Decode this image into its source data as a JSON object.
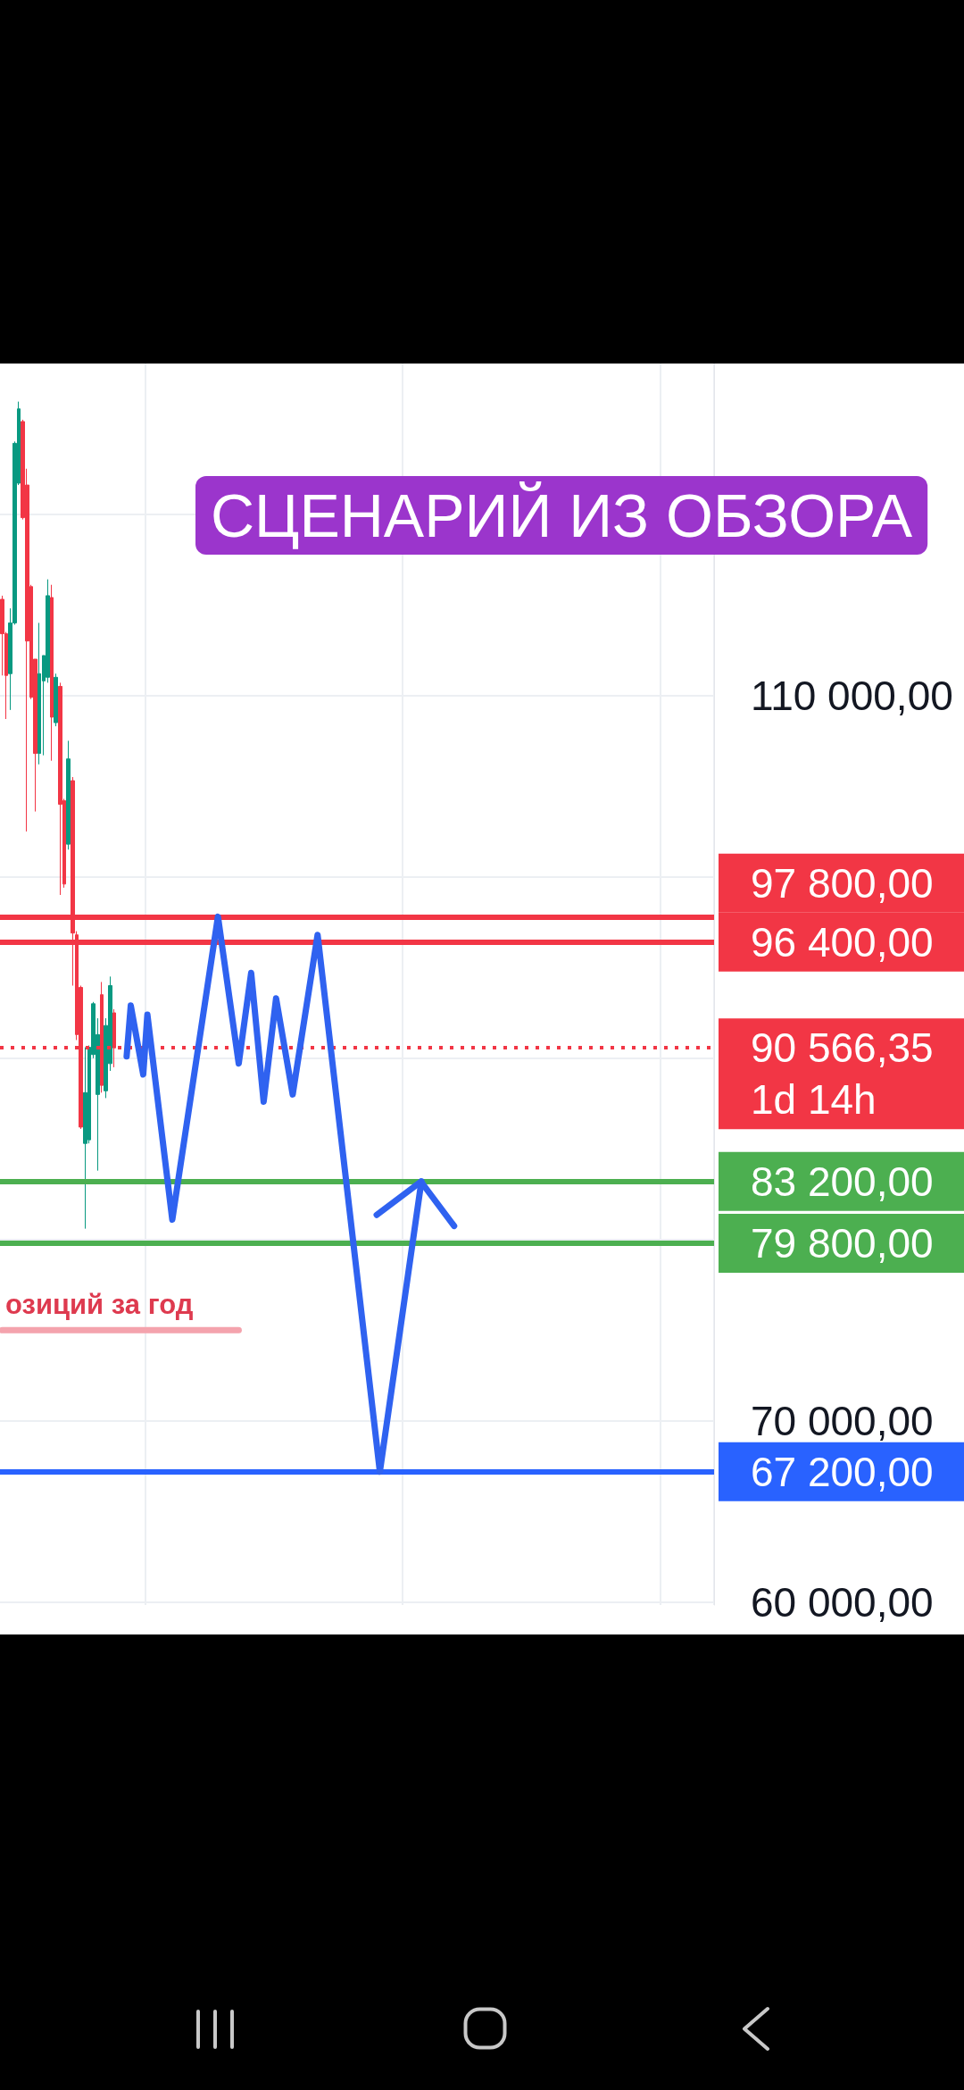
{
  "chart_data": {
    "type": "candlestick",
    "title": "СЦЕНАРИЙ ИЗ ОБЗОРА",
    "categories": [
      null,
      null,
      null,
      null,
      null,
      null,
      null,
      null,
      null,
      null,
      null,
      null,
      null,
      null,
      null,
      null,
      null,
      null,
      null,
      null,
      null,
      null,
      null,
      null,
      null,
      null,
      null,
      null,
      null,
      null,
      null,
      null,
      null,
      null,
      null,
      null,
      null,
      null,
      null,
      null,
      null,
      null,
      null,
      null,
      null,
      null,
      null,
      null,
      null,
      null,
      null,
      null,
      null,
      null,
      null,
      null,
      null,
      null,
      null,
      null,
      null,
      null,
      null,
      null,
      null,
      null,
      null,
      null,
      null,
      null,
      null,
      null,
      null,
      null,
      null,
      null,
      null,
      null,
      null,
      null,
      null,
      null,
      null,
      null,
      null,
      null,
      null,
      null,
      null,
      null,
      null,
      null,
      null,
      null,
      null,
      null,
      null,
      null,
      null,
      null,
      null,
      null,
      null,
      null,
      null,
      null,
      null,
      null,
      null,
      null,
      null,
      null,
      null,
      null,
      null,
      null,
      null,
      null,
      null,
      null,
      null,
      null,
      null,
      null,
      null,
      null,
      null,
      null,
      null,
      null,
      null,
      null,
      null,
      null,
      null,
      null,
      null,
      null,
      null,
      null,
      null,
      null,
      null,
      null,
      null,
      null,
      null,
      null,
      null,
      null,
      null,
      null,
      null,
      null,
      null,
      null,
      null,
      null,
      null,
      null,
      null,
      null,
      null,
      null,
      null,
      null,
      null,
      null,
      null,
      null,
      null,
      null
    ],
    "series": [
      {
        "ohlc": [
          [
            115300,
            115500,
            111100,
            113400
          ],
          [
            113400,
            113500,
            108700,
            111100
          ],
          [
            111200,
            114800,
            109200,
            114000
          ],
          [
            114000,
            124000,
            113900,
            123900
          ],
          [
            121700,
            126200,
            121600,
            125800
          ],
          [
            125100,
            125200,
            119700,
            119800
          ],
          [
            121600,
            122500,
            102500,
            113000
          ],
          [
            116000,
            116100,
            109800,
            109900
          ],
          [
            112000,
            112000,
            103600,
            106800
          ],
          [
            106800,
            114000,
            106200,
            111200
          ],
          [
            110800,
            112200,
            106700,
            112200
          ],
          [
            111000,
            116400,
            110700,
            115500
          ],
          [
            115400,
            116100,
            106400,
            108800
          ],
          [
            108500,
            111200,
            108300,
            111000
          ],
          [
            110500,
            110700,
            99000,
            104000
          ],
          [
            104200,
            104300,
            99400,
            99600
          ],
          [
            101800,
            107500,
            101500,
            106500
          ],
          [
            105300,
            105500,
            94000,
            96900
          ],
          [
            96800,
            97000,
            91000,
            91300
          ],
          [
            93900,
            94000,
            86100,
            86200
          ],
          [
            85300,
            90600,
            80600,
            88100
          ],
          [
            85500,
            90700,
            85300,
            90600
          ],
          [
            90200,
            93100,
            90000,
            93000
          ],
          [
            88000,
            92200,
            83800,
            91300
          ],
          [
            93500,
            94200,
            88100,
            88500
          ],
          [
            88200,
            92200,
            87800,
            91800
          ],
          [
            89700,
            94500,
            89300,
            94000
          ],
          [
            92500,
            92700,
            89500,
            90566.35
          ],
          null,
          null,
          null,
          null,
          null,
          null,
          null,
          null,
          null,
          null,
          null,
          null,
          null,
          null,
          null,
          null,
          null,
          null,
          null,
          null,
          null,
          null,
          null,
          null,
          null,
          null,
          null,
          null,
          null,
          null,
          null,
          null,
          null,
          null,
          null,
          null,
          null,
          null,
          null,
          null,
          null,
          null,
          null,
          null,
          null,
          null,
          null,
          null,
          null,
          null,
          null,
          null,
          null,
          null,
          null,
          null,
          null,
          null,
          null,
          null,
          null,
          null,
          null,
          null,
          null,
          null,
          null,
          null,
          null,
          null,
          null,
          null,
          null,
          null,
          null,
          null,
          null,
          null,
          null,
          null,
          null,
          null,
          null,
          null,
          null,
          null,
          null,
          null,
          null,
          null,
          null,
          null,
          null,
          null,
          null,
          null,
          null,
          null,
          null,
          null,
          null,
          null,
          null,
          null,
          null,
          null,
          null,
          null,
          null,
          null,
          null,
          null,
          null,
          null,
          null,
          null,
          null,
          null,
          null,
          null,
          null,
          null,
          null,
          null,
          null,
          null,
          null,
          null,
          null,
          null,
          null,
          null,
          null,
          null,
          null,
          null,
          null,
          null,
          null,
          null,
          null,
          null,
          null,
          null
        ],
        "colors": [
          "#f23645",
          "#f23645",
          "#089981",
          "#089981",
          "#089981",
          "#f23645",
          "#f23645",
          "#f23645",
          "#f23645",
          "#089981",
          "#089981",
          "#089981",
          "#f23645",
          "#089981",
          "#f23645",
          "#f23645",
          "#089981",
          "#f23645",
          "#f23645",
          "#f23645",
          "#089981",
          "#089981",
          "#089981",
          "#089981",
          "#f23645",
          "#089981",
          "#089981",
          "#f23645",
          null,
          null,
          null,
          null,
          null,
          null,
          null,
          null,
          null,
          null,
          null,
          null,
          null,
          null,
          null,
          null,
          null,
          null,
          null,
          null,
          null,
          null,
          null,
          null,
          null,
          null,
          null,
          null,
          null,
          null,
          null,
          null,
          null,
          null,
          null,
          null,
          null,
          null,
          null,
          null,
          null,
          null,
          null,
          null,
          null,
          null,
          null,
          null,
          null,
          null,
          null,
          null,
          null,
          null,
          null,
          null,
          null,
          null,
          null,
          null,
          null,
          null,
          null,
          null,
          null,
          null,
          null,
          null,
          null,
          null,
          null,
          null,
          null,
          null,
          null,
          null,
          null,
          null,
          null,
          null,
          null,
          null,
          null,
          null,
          null,
          null,
          null,
          null,
          null,
          null,
          null,
          null,
          null,
          null,
          null,
          null,
          null,
          null,
          null,
          null,
          null,
          null,
          null,
          null,
          null,
          null,
          null,
          null,
          null,
          null,
          null,
          null,
          null,
          null,
          null,
          null,
          null,
          null,
          null,
          null,
          null,
          null,
          null,
          null,
          null,
          null,
          null,
          null,
          null,
          null,
          null,
          null,
          null,
          null,
          null,
          null,
          null,
          null,
          null,
          null,
          null,
          null,
          null,
          null
        ]
      },
      {
        "type": "line",
        "color": "#2f62f0",
        "values": [
          null,
          null,
          null,
          null,
          null,
          null,
          null,
          null,
          null,
          null,
          null,
          null,
          null,
          null,
          null,
          null,
          null,
          null,
          null,
          null,
          null,
          null,
          null,
          null,
          null,
          null,
          null,
          null,
          null,
          null,
          90100,
          92900,
          null,
          null,
          89100,
          92400,
          null,
          null,
          null,
          null,
          null,
          81100,
          null,
          null,
          null,
          null,
          null,
          null,
          null,
          null,
          null,
          null,
          97800,
          null,
          null,
          null,
          null,
          89700,
          null,
          null,
          94700,
          null,
          null,
          87600,
          null,
          null,
          93300,
          null,
          null,
          null,
          88000,
          null,
          null,
          null,
          null,
          null,
          96800,
          null,
          null,
          null,
          null,
          null,
          null,
          null,
          null,
          null,
          null,
          null,
          null,
          null,
          null,
          67200,
          null,
          null,
          null,
          null,
          null,
          null,
          null,
          null,
          null,
          83200,
          null,
          null,
          null,
          null,
          null,
          null,
          null,
          null,
          null,
          null,
          null,
          null,
          null,
          null,
          null,
          null,
          null,
          null,
          null,
          null,
          null,
          null,
          null,
          null,
          null,
          null,
          null,
          null,
          null,
          null,
          null,
          null,
          null,
          null,
          null,
          null,
          null,
          null,
          null,
          null,
          null,
          null,
          null,
          null,
          null,
          null,
          null,
          null,
          null,
          null,
          null,
          null,
          null,
          null,
          null,
          null,
          null,
          null,
          null,
          null,
          null,
          null,
          null,
          null,
          null,
          null,
          null,
          null,
          null,
          null
        ]
      },
      {
        "type": "line",
        "color": "#f4a3ad",
        "values": [
          75000,
          null,
          null,
          null,
          null,
          null,
          null,
          null,
          null,
          null,
          null,
          null,
          null,
          null,
          null,
          null,
          null,
          null,
          null,
          null,
          null,
          null,
          null,
          null,
          null,
          null,
          null,
          null,
          null,
          null,
          null,
          null,
          null,
          null,
          null,
          null,
          null,
          null,
          null,
          null,
          null,
          null,
          null,
          null,
          null,
          null,
          null,
          null,
          null,
          null,
          null,
          null,
          null,
          null,
          null,
          null,
          null,
          75000,
          null,
          null,
          null,
          null,
          null,
          null,
          null,
          null,
          null,
          null,
          null,
          null,
          null,
          null,
          null,
          null,
          null,
          null,
          null,
          null,
          null,
          null,
          null,
          null,
          null,
          null,
          null,
          null,
          null,
          null,
          null,
          null,
          null,
          null,
          null,
          null,
          null,
          null,
          null,
          null,
          null,
          null,
          null,
          null,
          null,
          null,
          null,
          null,
          null,
          null,
          null,
          null,
          null,
          null,
          null,
          null,
          null,
          null,
          null,
          null,
          null,
          null,
          null,
          null,
          null,
          null,
          null,
          null,
          null,
          null,
          null,
          null,
          null,
          null,
          null,
          null,
          null,
          null,
          null,
          null,
          null,
          null,
          null,
          null,
          null,
          null,
          null,
          null,
          null,
          null,
          null,
          null,
          null,
          null,
          null,
          null,
          null,
          null,
          null,
          null,
          null,
          null,
          null,
          null,
          null,
          null,
          null,
          null,
          null,
          null,
          null,
          null,
          null,
          null
        ]
      }
    ],
    "ylim": [
      59850,
      128300
    ],
    "yticks": [
      {
        "value": 60000,
        "label": "60 000,00"
      },
      {
        "value": 70000,
        "label": "70 000,00"
      },
      {
        "value": 80000,
        "label": null
      },
      {
        "value": 90000,
        "label": null
      },
      {
        "value": 100000,
        "label": null
      },
      {
        "value": 110000,
        "label": "110 000,00"
      },
      {
        "value": 120000,
        "label": null
      }
    ],
    "grid": true,
    "tick_labels": "y",
    "marker": "none",
    "ref_lines": [
      {
        "axis": "y",
        "value": 97800,
        "label": "97 800,00",
        "color": "#f23645"
      },
      {
        "axis": "y",
        "value": 96400,
        "label": "96 400,00",
        "color": "#f23645"
      },
      {
        "axis": "y",
        "value": 90566.35,
        "label": "90 566,35\n1d 14h",
        "color": "#f23645",
        "line_style": "dotted"
      },
      {
        "axis": "y",
        "value": 83200,
        "label": "83 200,00",
        "color": "#4caf50"
      },
      {
        "axis": "y",
        "value": 79800,
        "label": "79 800,00",
        "color": "#4caf50"
      },
      {
        "axis": "y",
        "value": 67200,
        "label": "67 200,00",
        "color": "#2962ff"
      }
    ],
    "annotations": [
      {
        "text": "озиций за год",
        "y": 75000
      }
    ]
  }
}
